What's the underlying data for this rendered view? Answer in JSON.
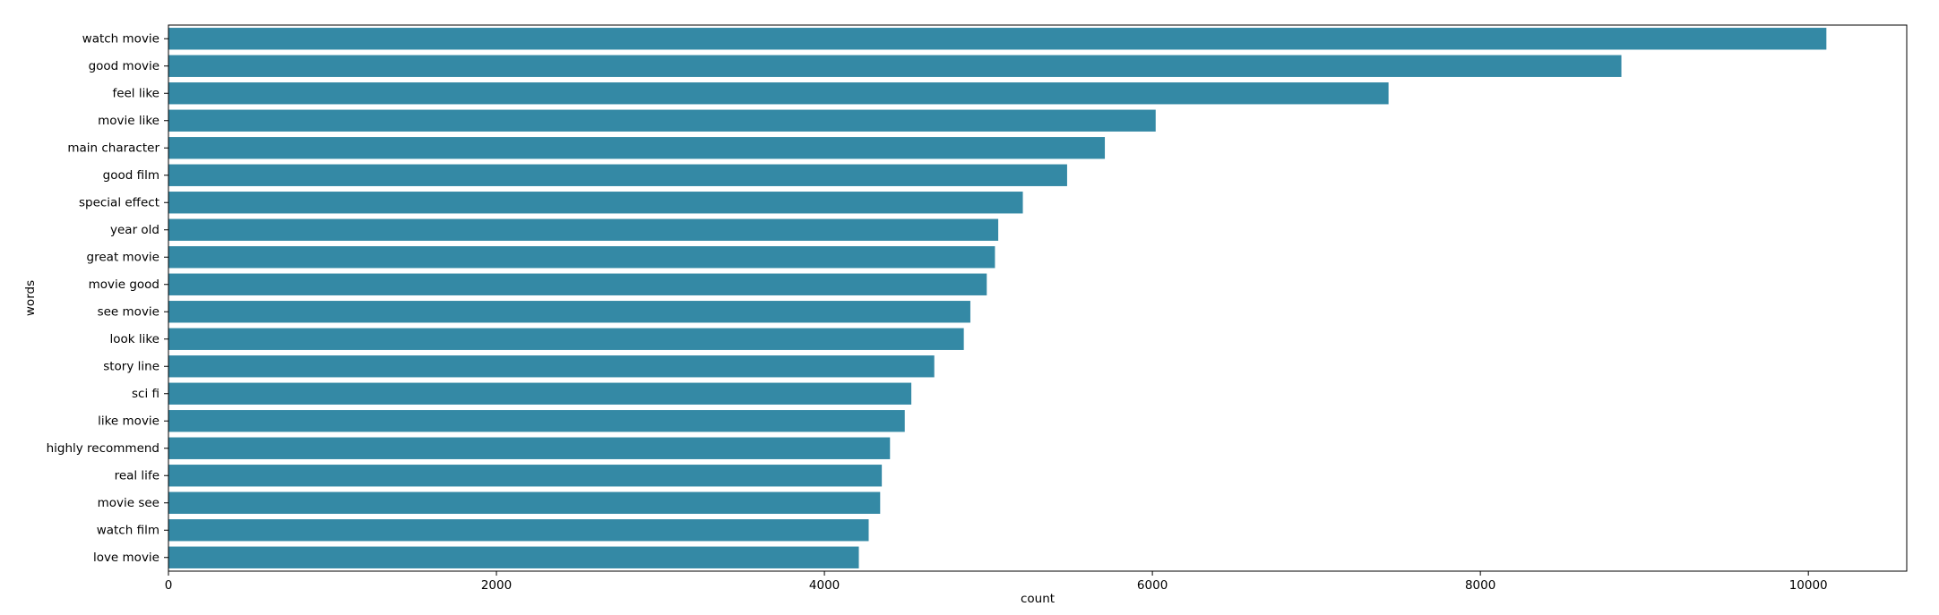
{
  "chart_data": {
    "type": "bar",
    "orientation": "horizontal",
    "categories": [
      "watch movie",
      "good movie",
      "feel like",
      "movie like",
      "main character",
      "good film",
      "special effect",
      "year old",
      "great movie",
      "movie good",
      "see movie",
      "look like",
      "story line",
      "sci fi",
      "like movie",
      "highly recommend",
      "real life",
      "movie see",
      "watch film",
      "love movie"
    ],
    "values": [
      10110,
      8860,
      7440,
      6020,
      5710,
      5480,
      5210,
      5060,
      5040,
      4990,
      4890,
      4850,
      4670,
      4530,
      4490,
      4400,
      4350,
      4340,
      4270,
      4210
    ],
    "xlabel": "count",
    "ylabel": "words",
    "xlim": [
      0,
      10600
    ],
    "xticks": [
      0,
      2000,
      4000,
      6000,
      8000,
      10000
    ],
    "bar_color": "#3489a5",
    "grid": false
  }
}
